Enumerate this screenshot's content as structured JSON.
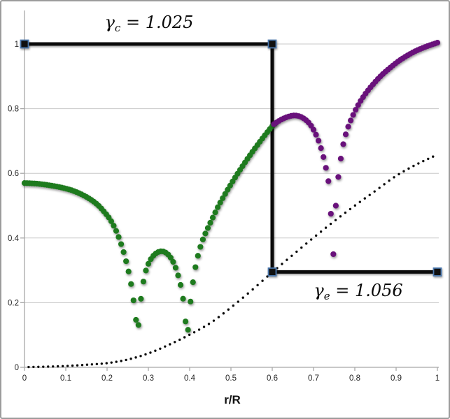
{
  "frame": {
    "background": "#ffffff",
    "border_color": "#9c9c9c"
  },
  "annotations": {
    "gamma_c": {
      "symbol": "γ",
      "sub": "c",
      "eq": " = 1.025"
    },
    "gamma_e": {
      "symbol": "γ",
      "sub": "e",
      "eq": " = 1.056"
    }
  },
  "chart_data": {
    "type": "scatter",
    "title": "",
    "xlabel": "r/R",
    "ylabel": "",
    "xlim": [
      0,
      1
    ],
    "ylim": [
      0,
      1.1
    ],
    "grid": true,
    "x_ticks": [
      "0",
      "0.1",
      "0.2",
      "0.3",
      "0.4",
      "0.5",
      "0.6",
      "0.7",
      "0.8",
      "0.9",
      "1"
    ],
    "y_ticks": [
      "0",
      "0.2",
      "0.4",
      "0.6",
      "0.8",
      "1"
    ],
    "colors": {
      "green_series": "#1e7b1e",
      "purple_series": "#69117b",
      "dotted_series": "#0a0a0a",
      "step_line": "#0a0a0a",
      "step_marker_fill": "#101010",
      "step_marker_border": "#4a77ad",
      "gridline": "#c8c8c8",
      "axis": "#a8a8a8"
    },
    "series": [
      {
        "name": "gamma-step-line",
        "type": "line",
        "marker": "square",
        "points": [
          [
            0,
            1
          ],
          [
            0.6,
            1
          ],
          [
            0.6,
            0.295
          ],
          [
            1,
            0.295
          ]
        ]
      },
      {
        "name": "dotted-reference-curve",
        "type": "dotted-scatter",
        "marker": "dot",
        "dot_step": 0.0118,
        "points": [
          [
            0.01,
            0.001
          ],
          [
            0.05,
            0.002
          ],
          [
            0.1,
            0.004
          ],
          [
            0.15,
            0.008
          ],
          [
            0.2,
            0.013
          ],
          [
            0.25,
            0.024
          ],
          [
            0.3,
            0.043
          ],
          [
            0.35,
            0.07
          ],
          [
            0.4,
            0.101
          ],
          [
            0.45,
            0.137
          ],
          [
            0.5,
            0.185
          ],
          [
            0.55,
            0.238
          ],
          [
            0.6,
            0.294
          ],
          [
            0.65,
            0.348
          ],
          [
            0.7,
            0.401
          ],
          [
            0.75,
            0.452
          ],
          [
            0.8,
            0.5
          ],
          [
            0.85,
            0.546
          ],
          [
            0.9,
            0.592
          ],
          [
            0.95,
            0.628
          ],
          [
            1.0,
            0.658
          ]
        ]
      },
      {
        "name": "core-mode-green",
        "type": "dense-scatter",
        "marker": "circle",
        "dot_step": 0.006,
        "points": [
          [
            0.0,
            0.57
          ],
          [
            0.03,
            0.568
          ],
          [
            0.06,
            0.563
          ],
          [
            0.09,
            0.556
          ],
          [
            0.12,
            0.545
          ],
          [
            0.15,
            0.527
          ],
          [
            0.175,
            0.505
          ],
          [
            0.195,
            0.478
          ],
          [
            0.21,
            0.452
          ],
          [
            0.225,
            0.413
          ],
          [
            0.238,
            0.365
          ],
          [
            0.248,
            0.318
          ],
          [
            0.256,
            0.272
          ],
          [
            0.262,
            0.225
          ],
          [
            0.268,
            0.17
          ],
          [
            0.274,
            0.115
          ],
          [
            0.28,
            0.19
          ],
          [
            0.286,
            0.25
          ],
          [
            0.293,
            0.295
          ],
          [
            0.303,
            0.328
          ],
          [
            0.316,
            0.35
          ],
          [
            0.332,
            0.359
          ],
          [
            0.346,
            0.351
          ],
          [
            0.358,
            0.331
          ],
          [
            0.368,
            0.301
          ],
          [
            0.376,
            0.265
          ],
          [
            0.382,
            0.23
          ],
          [
            0.388,
            0.17
          ],
          [
            0.394,
            0.1
          ],
          [
            0.4,
            0.18
          ],
          [
            0.406,
            0.245
          ],
          [
            0.413,
            0.303
          ],
          [
            0.421,
            0.35
          ],
          [
            0.431,
            0.392
          ],
          [
            0.443,
            0.428
          ],
          [
            0.456,
            0.463
          ],
          [
            0.47,
            0.5
          ],
          [
            0.49,
            0.545
          ],
          [
            0.51,
            0.587
          ],
          [
            0.53,
            0.626
          ],
          [
            0.55,
            0.663
          ],
          [
            0.575,
            0.706
          ],
          [
            0.6,
            0.746
          ],
          [
            0.606,
            0.753
          ]
        ]
      },
      {
        "name": "envelope-mode-purple",
        "type": "dense-scatter",
        "marker": "circle",
        "dot_step": 0.006,
        "points": [
          [
            0.604,
            0.752
          ],
          [
            0.62,
            0.765
          ],
          [
            0.638,
            0.775
          ],
          [
            0.655,
            0.779
          ],
          [
            0.672,
            0.773
          ],
          [
            0.688,
            0.757
          ],
          [
            0.7,
            0.735
          ],
          [
            0.712,
            0.701
          ],
          [
            0.722,
            0.66
          ],
          [
            0.73,
            0.617
          ],
          [
            0.737,
            0.565
          ],
          [
            0.742,
            0.475
          ],
          [
            0.748,
            0.35
          ],
          [
            0.754,
            0.5
          ],
          [
            0.758,
            0.565
          ],
          [
            0.764,
            0.628
          ],
          [
            0.772,
            0.69
          ],
          [
            0.782,
            0.737
          ],
          [
            0.794,
            0.775
          ],
          [
            0.808,
            0.811
          ],
          [
            0.824,
            0.843
          ],
          [
            0.842,
            0.872
          ],
          [
            0.862,
            0.9
          ],
          [
            0.884,
            0.925
          ],
          [
            0.906,
            0.947
          ],
          [
            0.928,
            0.965
          ],
          [
            0.95,
            0.98
          ],
          [
            0.975,
            0.993
          ],
          [
            1.0,
            1.004
          ]
        ]
      }
    ]
  }
}
